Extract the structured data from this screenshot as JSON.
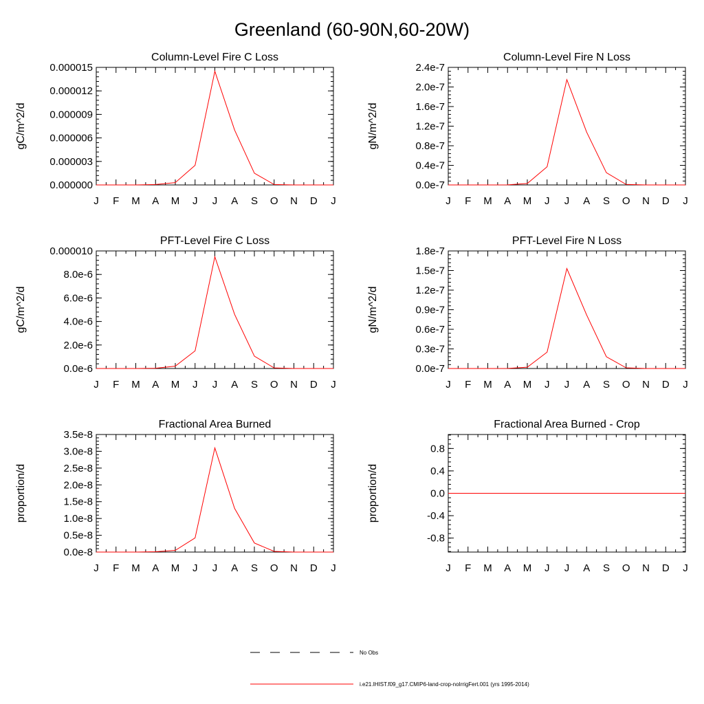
{
  "figure": {
    "title": "Greenland (60-90N,60-20W)"
  },
  "legend": {
    "entries": [
      {
        "label": "No Obs",
        "style": "dashed",
        "color": "#000000"
      },
      {
        "label": "i.e21.IHIST.f09_g17.CMIP6-land-crop-noIrrigFert.001 (yrs 1995-2014)",
        "style": "solid",
        "color": "#ff0000"
      }
    ]
  },
  "chart_data": [
    {
      "type": "line",
      "title": "Column-Level Fire C Loss",
      "ylabel": "gC/m^2/d",
      "x": [
        "J",
        "F",
        "M",
        "A",
        "M",
        "J",
        "J",
        "A",
        "S",
        "O",
        "N",
        "D",
        "J"
      ],
      "ylim": [
        0,
        1.5e-05
      ],
      "yticks": [
        "0.000000",
        "0.000003",
        "0.000006",
        "0.000009",
        "0.000012",
        "0.000015"
      ],
      "series": [
        {
          "color": "#ff0000",
          "values": [
            0,
            0,
            0,
            5e-08,
            3e-07,
            2.5e-06,
            1.45e-05,
            7e-06,
            1.5e-06,
            5e-08,
            0,
            0,
            0
          ]
        }
      ]
    },
    {
      "type": "line",
      "title": "Column-Level Fire N Loss",
      "ylabel": "gN/m^2/d",
      "x": [
        "J",
        "F",
        "M",
        "A",
        "M",
        "J",
        "J",
        "A",
        "S",
        "O",
        "N",
        "D",
        "J"
      ],
      "ylim": [
        0,
        2.4e-07
      ],
      "yticks": [
        "0.0e-7",
        "0.4e-7",
        "0.8e-7",
        "1.2e-7",
        "1.6e-7",
        "2.0e-7",
        "2.4e-7"
      ],
      "series": [
        {
          "color": "#ff0000",
          "values": [
            0,
            0,
            0,
            1e-10,
            3e-09,
            3.7e-08,
            2.15e-07,
            1.08e-07,
            2.5e-08,
            1e-09,
            0,
            0,
            0
          ]
        }
      ]
    },
    {
      "type": "line",
      "title": "PFT-Level Fire C Loss",
      "ylabel": "gC/m^2/d",
      "x": [
        "J",
        "F",
        "M",
        "A",
        "M",
        "J",
        "J",
        "A",
        "S",
        "O",
        "N",
        "D",
        "J"
      ],
      "ylim": [
        0,
        1e-05
      ],
      "yticks": [
        "0.0e-6",
        "2.0e-6",
        "4.0e-6",
        "6.0e-6",
        "8.0e-6",
        "0.000010"
      ],
      "series": [
        {
          "color": "#ff0000",
          "values": [
            0,
            0,
            0,
            2e-08,
            2e-07,
            1.5e-06,
            9.5e-06,
            4.6e-06,
            1.05e-06,
            5e-08,
            0,
            0,
            0
          ]
        }
      ]
    },
    {
      "type": "line",
      "title": "PFT-Level Fire N Loss",
      "ylabel": "gN/m^2/d",
      "x": [
        "J",
        "F",
        "M",
        "A",
        "M",
        "J",
        "J",
        "A",
        "S",
        "O",
        "N",
        "D",
        "J"
      ],
      "ylim": [
        0,
        1.8e-07
      ],
      "yticks": [
        "0.0e-7",
        "0.3e-7",
        "0.6e-7",
        "0.9e-7",
        "1.2e-7",
        "1.5e-7",
        "1.8e-7"
      ],
      "series": [
        {
          "color": "#ff0000",
          "values": [
            0,
            0,
            0,
            1e-10,
            2e-09,
            2.5e-08,
            1.53e-07,
            8.2e-08,
            1.8e-08,
            1e-09,
            0,
            0,
            0
          ]
        }
      ]
    },
    {
      "type": "line",
      "title": "Fractional Area Burned",
      "ylabel": "proportion/d",
      "x": [
        "J",
        "F",
        "M",
        "A",
        "M",
        "J",
        "J",
        "A",
        "S",
        "O",
        "N",
        "D",
        "J"
      ],
      "ylim": [
        0,
        3.5e-08
      ],
      "yticks": [
        "0.0e-8",
        "0.5e-8",
        "1.0e-8",
        "1.5e-8",
        "2.0e-8",
        "2.5e-8",
        "3.0e-8",
        "3.5e-8"
      ],
      "series": [
        {
          "color": "#ff0000",
          "values": [
            0,
            0,
            0,
            1e-10,
            5e-10,
            4.2e-09,
            3.1e-08,
            1.3e-08,
            2.7e-09,
            2e-10,
            0,
            0,
            0
          ]
        }
      ]
    },
    {
      "type": "line",
      "title": "Fractional Area Burned - Crop",
      "ylabel": "proportion/d",
      "x": [
        "J",
        "F",
        "M",
        "A",
        "M",
        "J",
        "J",
        "A",
        "S",
        "O",
        "N",
        "D",
        "J"
      ],
      "ylim": [
        -1.05,
        1.05
      ],
      "yticks": [
        "-0.8",
        "-0.4",
        "0.0",
        "0.4",
        "0.8"
      ],
      "ytick_values": [
        -0.8,
        -0.4,
        0,
        0.4,
        0.8
      ],
      "series": [
        {
          "color": "#ff0000",
          "values": [
            0,
            0,
            0,
            0,
            0,
            0,
            0,
            0,
            0,
            0,
            0,
            0,
            0
          ]
        }
      ]
    }
  ]
}
